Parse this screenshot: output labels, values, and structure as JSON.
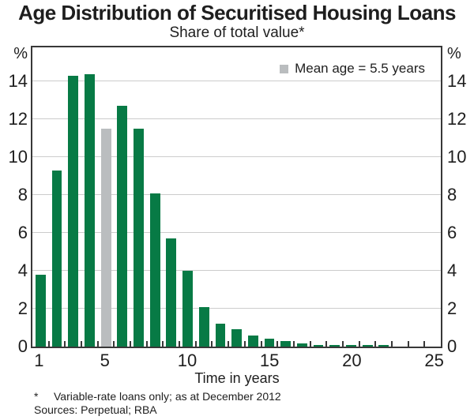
{
  "header": {
    "title": "Age Distribution of Securitised Housing Loans",
    "subtitle": "Share of total value*"
  },
  "legend": {
    "label": "Mean age = 5.5 years"
  },
  "axes": {
    "left_unit": "%",
    "right_unit": "%",
    "xlabel": "Time in years"
  },
  "footnotes": {
    "marker": "*",
    "note": "Variable-rate loans only; as at December 2012",
    "sources": "Sources: Perpetual; RBA"
  },
  "colors": {
    "bar_green": "#077a45",
    "bar_gray": "#babdbf",
    "gridline": "#cccccc",
    "axis": "#383838",
    "text": "#1e1e1e"
  },
  "chart_data": {
    "type": "bar",
    "title": "Age Distribution of Securitised Housing Loans",
    "subtitle": "Share of total value*",
    "xlabel": "Time in years",
    "ylabel": "%",
    "ylim": [
      0,
      15.8
    ],
    "y_ticks": [
      0,
      2,
      4,
      6,
      8,
      10,
      12,
      14
    ],
    "x_tick_labels": [
      1,
      5,
      10,
      15,
      20,
      25
    ],
    "grid": "horizontal",
    "legend_position": "top-right-inside",
    "x": [
      1,
      2,
      3,
      4,
      5,
      6,
      7,
      8,
      9,
      10,
      11,
      12,
      13,
      14,
      15,
      16,
      17,
      18,
      19,
      20,
      21,
      22,
      23,
      24,
      25
    ],
    "values": [
      3.8,
      9.3,
      14.3,
      14.4,
      11.5,
      12.7,
      11.5,
      8.1,
      5.7,
      4.0,
      2.1,
      1.2,
      0.9,
      0.6,
      0.4,
      0.3,
      0.15,
      0.1,
      0.1,
      0.1,
      0.1,
      0.1,
      0,
      0,
      0
    ],
    "highlight": {
      "x": 5,
      "style": "gray-bar",
      "annotation": "Mean age = 5.5 years",
      "mean_age_years": 5.5
    }
  }
}
